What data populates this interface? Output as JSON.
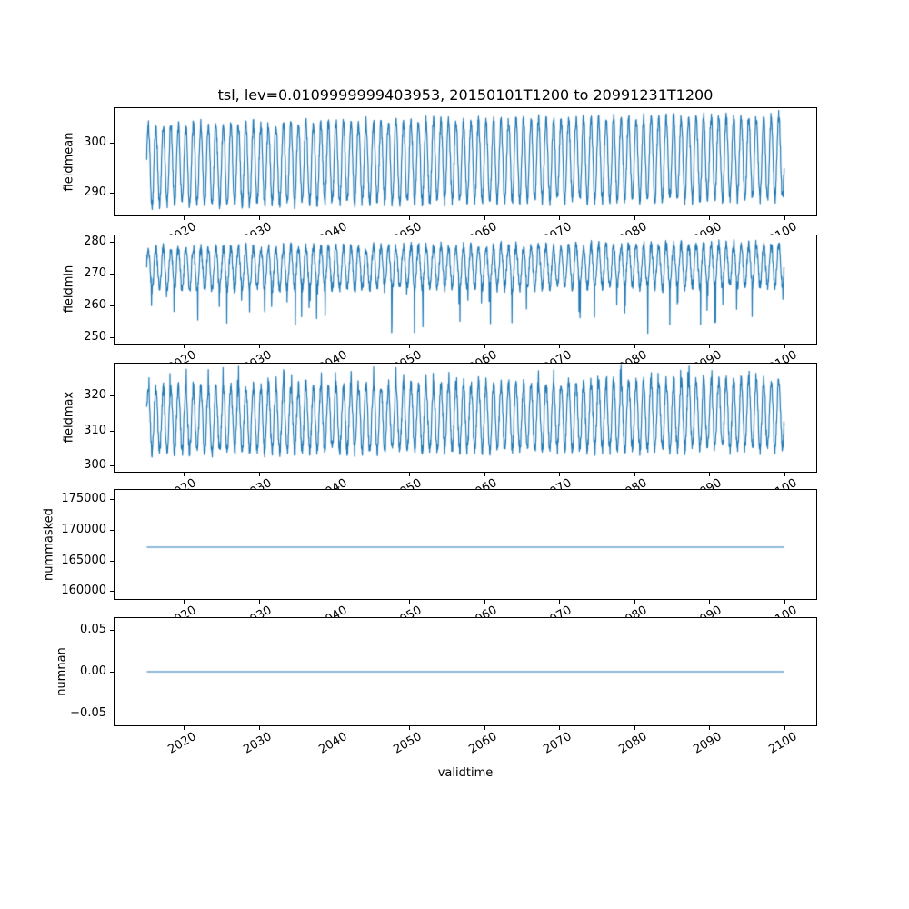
{
  "title": "tsl, lev=0.0109999999403953, 20150101T1200 to 20991231T1200",
  "xlabel": "validtime",
  "style": {
    "line_color": "#1f77b4",
    "axis_color": "#000000",
    "background": "#ffffff"
  },
  "xticks": [
    {
      "value": 2020,
      "label": "2020"
    },
    {
      "value": 2030,
      "label": "2030"
    },
    {
      "value": 2040,
      "label": "2040"
    },
    {
      "value": 2050,
      "label": "2050"
    },
    {
      "value": 2060,
      "label": "2060"
    },
    {
      "value": 2070,
      "label": "2070"
    },
    {
      "value": 2080,
      "label": "2080"
    },
    {
      "value": 2090,
      "label": "2090"
    },
    {
      "value": 2100,
      "label": "2100"
    }
  ],
  "chart_data": [
    {
      "type": "line",
      "ylabel": "fieldmean",
      "xlim": [
        2010.75,
        2104.25
      ],
      "ylim": [
        285.3,
        307.1
      ],
      "yticks": [
        {
          "value": 290,
          "label": "290"
        },
        {
          "value": 300,
          "label": "300"
        }
      ],
      "series": [
        {
          "name": "fieldmean",
          "pattern": "seasonal",
          "start": 2015.04,
          "end": 2100.0,
          "points_per_year": 30,
          "base": 295.5,
          "trend": 0.02,
          "amplitude": 8.0,
          "amp_trend": 0.004,
          "noise": 1.2,
          "seed": 101
        }
      ]
    },
    {
      "type": "line",
      "ylabel": "fieldmin",
      "xlim": [
        2010.75,
        2104.25
      ],
      "ylim": [
        248.0,
        282.0
      ],
      "yticks": [
        {
          "value": 250,
          "label": "250"
        },
        {
          "value": 260,
          "label": "260"
        },
        {
          "value": 270,
          "label": "270"
        },
        {
          "value": 280,
          "label": "280"
        }
      ],
      "series": [
        {
          "name": "fieldmin",
          "pattern": "seasonal",
          "start": 2015.04,
          "end": 2100.0,
          "points_per_year": 30,
          "base": 271.5,
          "trend": 0.015,
          "amplitude": 6.5,
          "amp_trend": 0.0,
          "noise": 1.6,
          "seed": 202,
          "dip": {
            "prob": 0.12,
            "max": 14
          }
        }
      ]
    },
    {
      "type": "line",
      "ylabel": "fieldmax",
      "xlim": [
        2010.75,
        2104.25
      ],
      "ylim": [
        298.2,
        329.2
      ],
      "yticks": [
        {
          "value": 300,
          "label": "300"
        },
        {
          "value": 310,
          "label": "310"
        },
        {
          "value": 320,
          "label": "320"
        }
      ],
      "series": [
        {
          "name": "fieldmax",
          "pattern": "seasonal",
          "start": 2015.04,
          "end": 2100.0,
          "points_per_year": 30,
          "base": 313.0,
          "trend": 0.02,
          "amplitude": 9.0,
          "amp_trend": 0.01,
          "noise": 1.8,
          "seed": 303,
          "spike": {
            "prob": 0.12,
            "max": 5.5
          }
        }
      ]
    },
    {
      "type": "line",
      "ylabel": "nummasked",
      "xlim": [
        2010.75,
        2104.25
      ],
      "ylim": [
        158700,
        176500
      ],
      "yticks": [
        {
          "value": 160000,
          "label": "160000"
        },
        {
          "value": 165000,
          "label": "165000"
        },
        {
          "value": 170000,
          "label": "170000"
        },
        {
          "value": 175000,
          "label": "175000"
        }
      ],
      "series": [
        {
          "name": "nummasked",
          "pattern": "constant",
          "start": 2015.04,
          "end": 2100.0,
          "value": 167154
        }
      ]
    },
    {
      "type": "line",
      "ylabel": "numnan",
      "xlim": [
        2010.75,
        2104.25
      ],
      "ylim": [
        -0.064,
        0.064
      ],
      "yticks": [
        {
          "value": -0.05,
          "label": "−0.05"
        },
        {
          "value": 0.0,
          "label": "0.00"
        },
        {
          "value": 0.05,
          "label": "0.05"
        }
      ],
      "series": [
        {
          "name": "numnan",
          "pattern": "constant",
          "start": 2015.04,
          "end": 2100.0,
          "value": 0.0
        }
      ]
    }
  ]
}
